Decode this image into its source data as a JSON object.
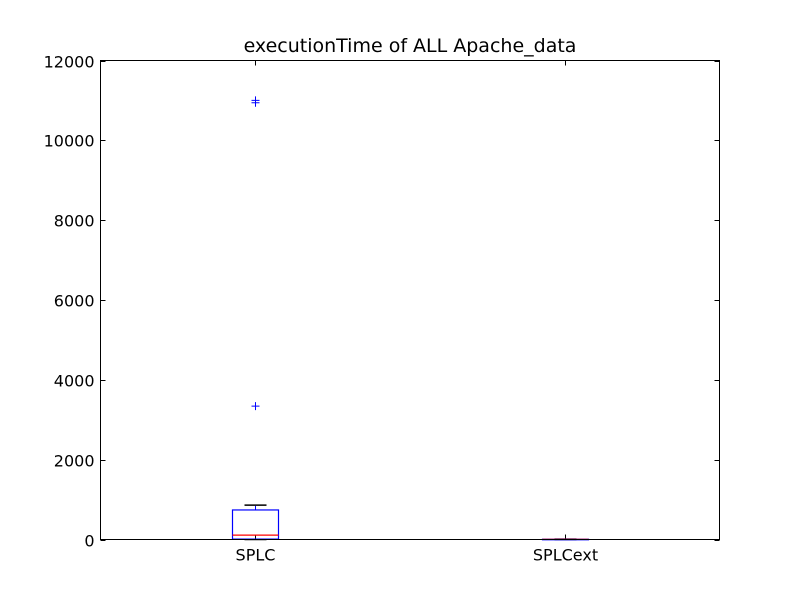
{
  "chart_data": {
    "type": "box",
    "title": "executionTime of ALL Apache_data",
    "xlabel": "",
    "ylabel": "",
    "ylim": [
      0,
      12000
    ],
    "yticks": [
      0,
      2000,
      4000,
      6000,
      8000,
      10000,
      12000
    ],
    "ytick_labels": [
      "0",
      "2000",
      "4000",
      "6000",
      "8000",
      "10000",
      "12000"
    ],
    "categories": [
      "SPLC",
      "SPLCext"
    ],
    "grid": false,
    "colors": {
      "box": "#0000ff",
      "median": "#ff0000",
      "whisker": "#000000",
      "flier": "#0000ff"
    },
    "boxes": [
      {
        "name": "SPLC",
        "whisker_low": 0,
        "q1": 10,
        "median": 110,
        "q3": 740,
        "whisker_high": 860,
        "fliers": [
          3340,
          10940,
          11000
        ]
      },
      {
        "name": "SPLCext",
        "whisker_low": 0,
        "q1": 0,
        "median": 3,
        "q3": 6,
        "whisker_high": 8,
        "fliers": []
      }
    ]
  }
}
